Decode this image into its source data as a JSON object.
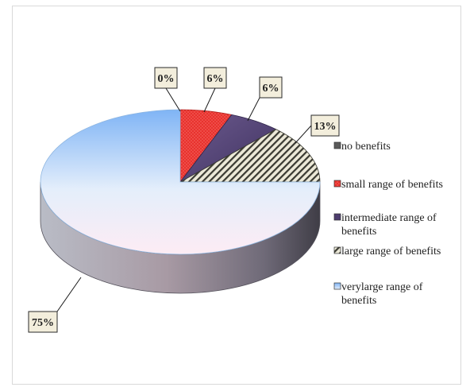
{
  "chart_data": {
    "type": "pie",
    "style": "3d",
    "title": "",
    "categories": [
      "no benefits",
      "small range of benefits",
      "intermediate range of benefits",
      "large range of benefits",
      "verylarge range of benefits"
    ],
    "values": [
      0,
      6,
      6,
      13,
      75
    ],
    "labels": [
      "0%",
      "6%",
      "6%",
      "13%",
      "75%"
    ],
    "legend_lines": [
      [
        "no benefits"
      ],
      [
        "small range of benefits"
      ],
      [
        "intermediate range of",
        "benefits"
      ],
      [
        "large range of benefits"
      ],
      [
        "verylarge range of",
        "benefits"
      ]
    ],
    "colors": [
      "#5a5a5a",
      "#e8322e",
      "#5b4a7a",
      "#e9e6d4",
      "#cfe4fb"
    ],
    "patterns": [
      "solid",
      "dots",
      "solid",
      "hatch",
      "gradient"
    ],
    "legend_position": "right"
  }
}
